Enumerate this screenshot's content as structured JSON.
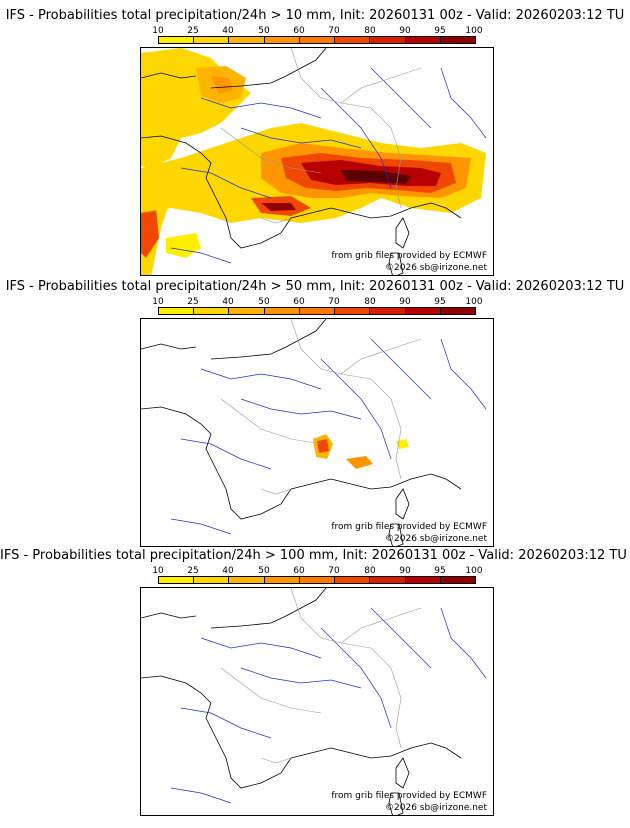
{
  "legend": {
    "ticks": [
      "10",
      "25",
      "40",
      "50",
      "60",
      "70",
      "80",
      "90",
      "95",
      "100"
    ],
    "colors": [
      "#ffee00",
      "#ffd700",
      "#ffb400",
      "#ff9600",
      "#ff7800",
      "#f04800",
      "#d81e00",
      "#b80000",
      "#900000",
      "#5a0000"
    ]
  },
  "panels": [
    {
      "title": "IFS - Probabilities total precipitation/24h > 10 mm, Init: 20260131 00z - Valid: 20260203:12 TU",
      "source_label": "from grib files provided by ECMWF",
      "copyright": "©2026 sb@irizone.net"
    },
    {
      "title": "IFS - Probabilities total precipitation/24h > 50 mm, Init: 20260131 00z - Valid: 20260203:12 TU",
      "source_label": "from grib files provided by ECMWF",
      "copyright": "©2026 sb@irizone.net"
    },
    {
      "title": "IFS - Probabilities total precipitation/24h > 100 mm, Init: 20260131 00z - Valid: 20260203:12 TU",
      "source_label": "from grib files provided by ECMWF",
      "copyright": "©2026 sb@irizone.net"
    }
  ]
}
